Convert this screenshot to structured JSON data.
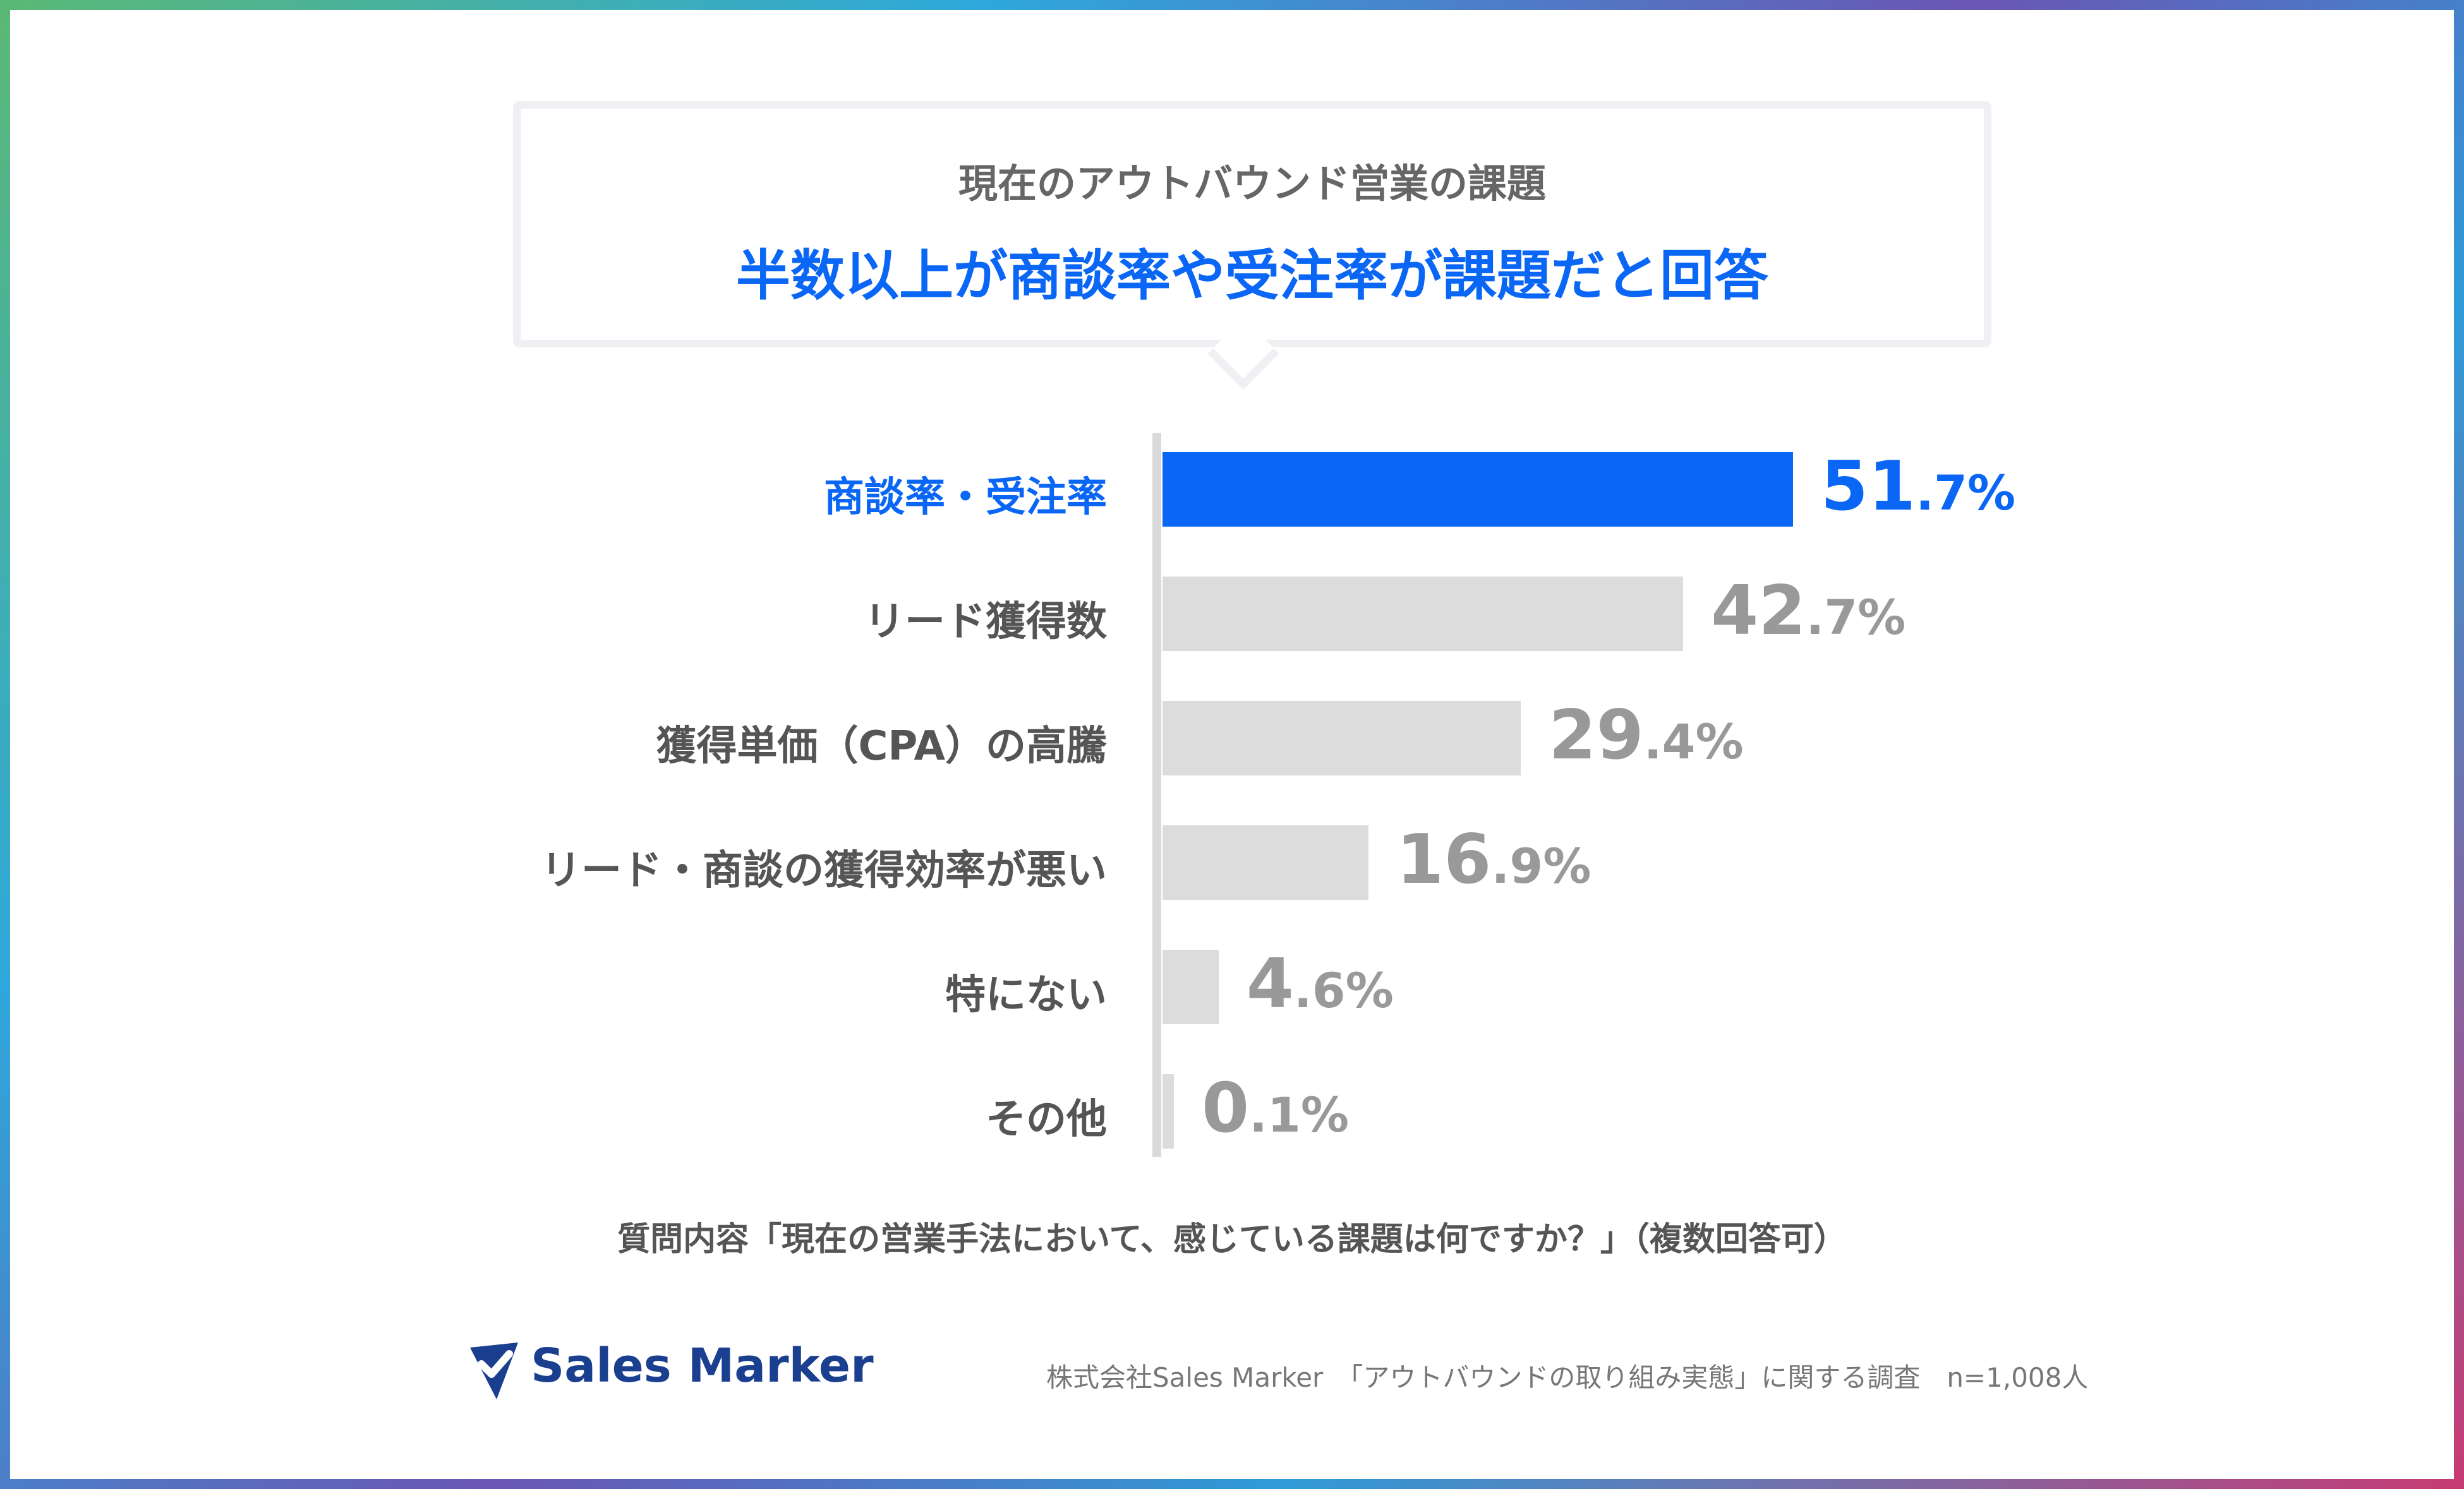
{
  "callout": {
    "subtitle": "現在のアウトバウンド営業の課題",
    "headline": "半数以上が商談率や受注率が課題だと回答"
  },
  "chart_data": {
    "type": "bar",
    "orientation": "horizontal",
    "categories": [
      "商談率・受注率",
      "リード獲得数",
      "獲得単価（CPA）の高騰",
      "リード・商談の獲得効率が悪い",
      "特にない",
      "その他"
    ],
    "values": [
      51.7,
      42.7,
      29.4,
      16.9,
      4.6,
      0.1
    ],
    "value_labels": [
      {
        "int": "51",
        "dec": ".7%"
      },
      {
        "int": "42",
        "dec": ".7%"
      },
      {
        "int": "29",
        "dec": ".4%"
      },
      {
        "int": "16",
        "dec": ".9%"
      },
      {
        "int": "4",
        "dec": ".6%"
      },
      {
        "int": "0",
        "dec": ".1%"
      }
    ],
    "highlight_index": 0,
    "colors": {
      "highlight": "#0a66f5",
      "default": "#dcdcdc",
      "label": "#555555",
      "value": "#999999"
    },
    "xlim": [
      0,
      100
    ]
  },
  "note": "質問内容「現在の営業手法において、感じている課題は何ですか？」（複数回答可）",
  "footer": {
    "logo_text": "Sales Marker",
    "logo_icon": "location-pin-check-icon",
    "credit": "株式会社Sales Marker　「アウトバウンドの取り組み実態」に関する調査　n=1,008人"
  },
  "colors": {
    "accent": "#0a66f5",
    "brand": "#1a3f8f"
  }
}
